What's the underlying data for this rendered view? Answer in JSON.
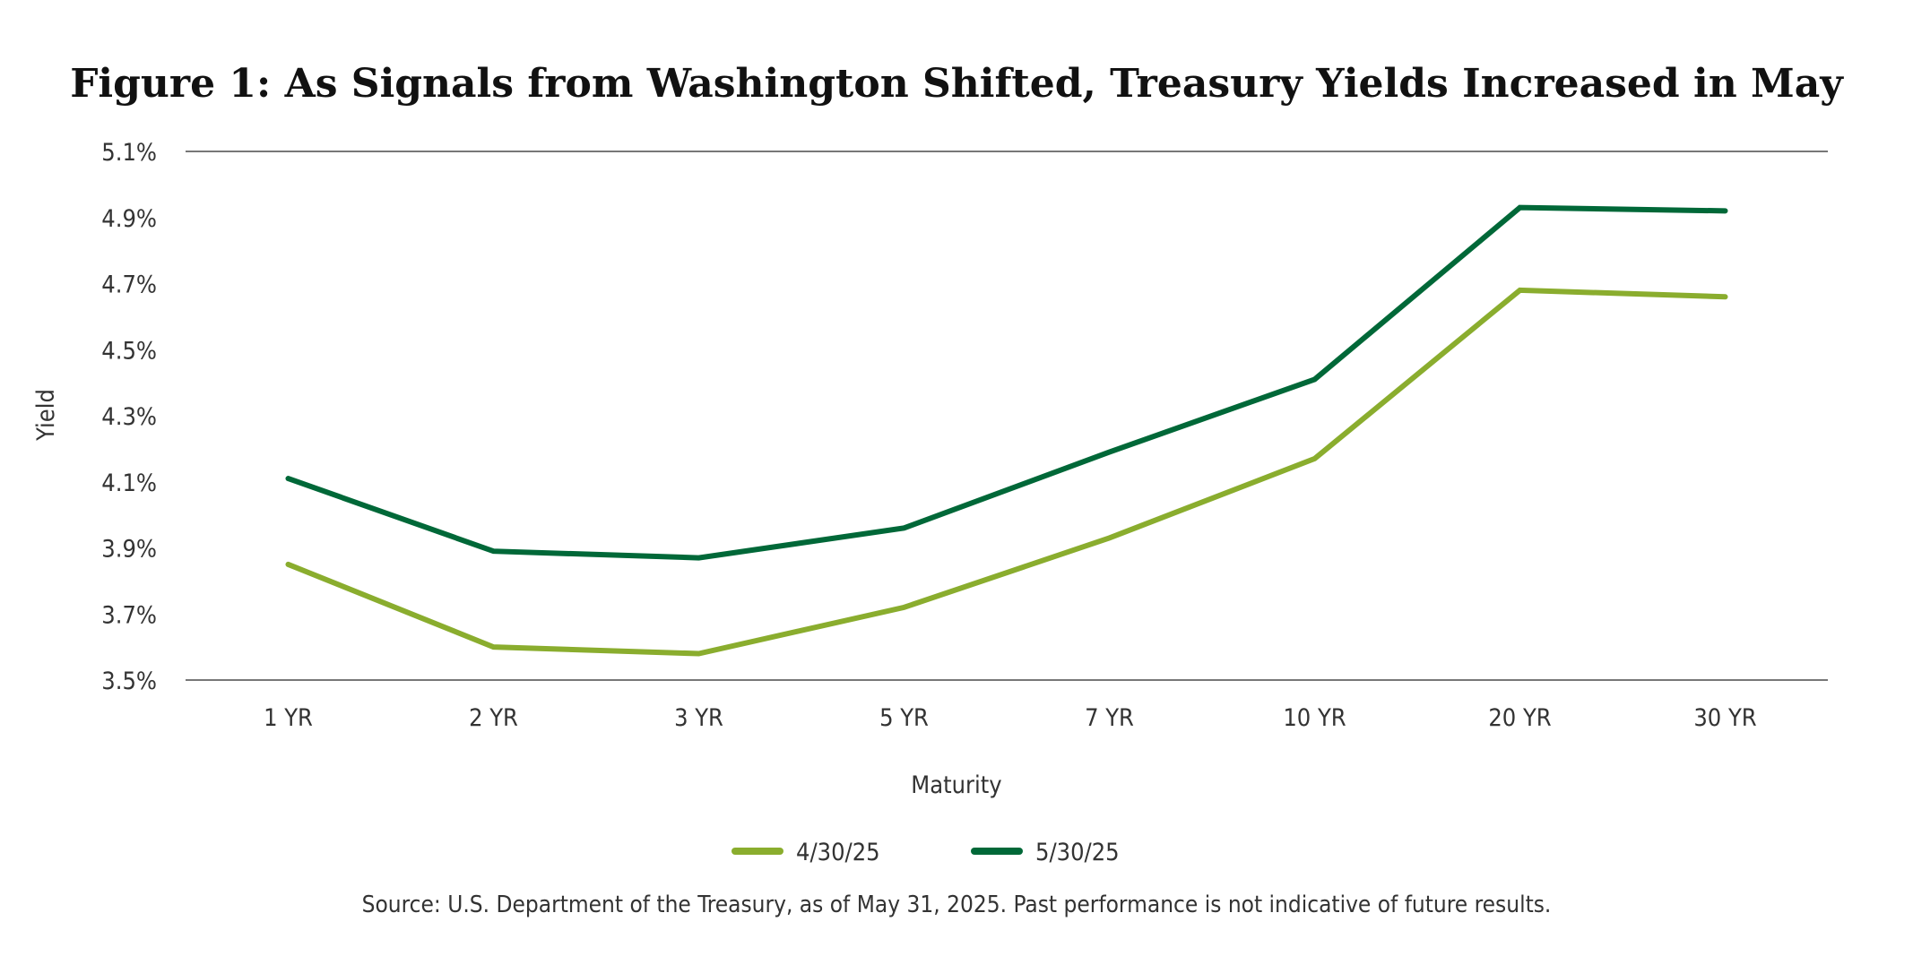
{
  "chart_data": {
    "type": "line",
    "title": "Figure 1: As Signals from Washington Shifted, Treasury Yields Increased in May",
    "xlabel": "Maturity",
    "ylabel": "Yield",
    "categories": [
      "1 YR",
      "2 YR",
      "3 YR",
      "5 YR",
      "7 YR",
      "10 YR",
      "20 YR",
      "30 YR"
    ],
    "ylim": [
      3.5,
      5.1
    ],
    "yticks": [
      3.5,
      3.7,
      3.9,
      4.1,
      4.3,
      4.5,
      4.7,
      4.9,
      5.1
    ],
    "ytick_labels": [
      "3.5%",
      "3.7%",
      "3.9%",
      "4.1%",
      "4.3%",
      "4.5%",
      "4.7%",
      "4.9%",
      "5.1%"
    ],
    "grid": "top and bottom horizontal lines only",
    "legend_position": "bottom",
    "series": [
      {
        "name": "4/30/25",
        "color": "#8aad2e",
        "values": [
          3.85,
          3.6,
          3.58,
          3.72,
          3.93,
          4.17,
          4.68,
          4.66
        ]
      },
      {
        "name": "5/30/25",
        "color": "#006838",
        "values": [
          4.11,
          3.89,
          3.87,
          3.96,
          4.19,
          4.41,
          4.93,
          4.92
        ]
      }
    ],
    "source": "Source: U.S. Department of the Treasury, as of May 31, 2025. Past performance is not indicative of future results."
  }
}
